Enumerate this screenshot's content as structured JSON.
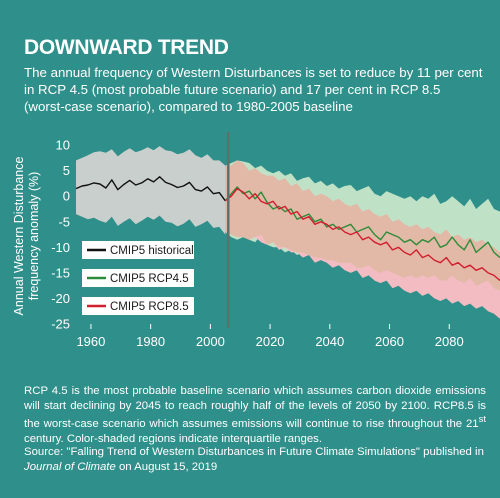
{
  "title": "DOWNWARD TREND",
  "subtitle": "The annual frequency of Western Disturbances is set to reduce by 11 per cent in RCP 4.5 (most probable future scenario) and 17 per cent in RCP 8.5 (worst-case scenario), compared to 1980-2005 baseline",
  "caption": {
    "before_sup": "RCP 4.5 is the most probable baseline scenario which assumes carbon dioxide emissions will start declining by 2045 to reach roughly half of the levels of 2050 by 2100. RCP8.5 is the worst-case scenario which assumes emissions will continue to rise throughout the 21",
    "sup": "st",
    "after_sup": " century. Color-shaded regions indicate interquartile ranges."
  },
  "source": {
    "before_journal": "Source: \"Falling Trend of Western Disturbances in Future Climate Simulations\" published in ",
    "journal": "Journal of Climate",
    "after_journal": " on August 15, 2019"
  },
  "colors": {
    "background": "#2f8f8a",
    "historical_band": "#c9cfcc",
    "rcp45_band": "#bfe2c6",
    "rcp85_band": "#f3bcc3",
    "overlap_band": "#e2b9a6",
    "historical_line": "#111111",
    "rcp45_line": "#2e8b3a",
    "rcp85_line": "#d11f2f",
    "divider": "#5f6f6c"
  },
  "chart_data": {
    "type": "line",
    "ylabel": "Annual Western Disturbance frequency anomaly (%)",
    "xlabel": "",
    "xlim": [
      1955,
      2097
    ],
    "ylim": [
      -25,
      11
    ],
    "xticks": [
      1960,
      1980,
      2000,
      2020,
      2040,
      2060,
      2080
    ],
    "yticks": [
      10,
      5,
      0,
      -5,
      -10,
      -15,
      -20,
      -25
    ],
    "divider_x": 2006,
    "legend_position": "left",
    "series": [
      {
        "name": "CMIP5 historical",
        "x": [
          1955,
          1957,
          1959,
          1961,
          1963,
          1965,
          1967,
          1969,
          1971,
          1973,
          1975,
          1977,
          1979,
          1981,
          1983,
          1985,
          1987,
          1989,
          1991,
          1993,
          1995,
          1997,
          1999,
          2001,
          2003,
          2005
        ],
        "y": [
          1.5,
          2,
          2.2,
          2.6,
          2.4,
          1.6,
          3.2,
          1.3,
          2.3,
          3.1,
          2.2,
          2.6,
          3.4,
          2.8,
          3.8,
          2.7,
          2.3,
          1.7,
          2.0,
          2.7,
          1.3,
          1.0,
          1.8,
          0.5,
          0.7,
          -0.9
        ],
        "q1": [
          -3.5,
          -4.0,
          -4.5,
          -4.2,
          -4.8,
          -5.2,
          -4.0,
          -5.8,
          -5.0,
          -4.3,
          -5.5,
          -4.8,
          -4.0,
          -4.6,
          -3.8,
          -5.0,
          -5.2,
          -5.9,
          -5.4,
          -4.5,
          -6.0,
          -5.5,
          -4.8,
          -6.2,
          -6.0,
          -7.5
        ],
        "q3": [
          7.0,
          7.5,
          8.0,
          8.6,
          8.8,
          8.5,
          9.2,
          7.8,
          8.7,
          9.4,
          8.6,
          9.0,
          9.6,
          9.0,
          9.8,
          9.0,
          8.8,
          8.2,
          8.5,
          9.2,
          8.0,
          7.5,
          8.2,
          7.0,
          7.0,
          6.0
        ]
      },
      {
        "name": "CMIP5 RCP4.5",
        "x": [
          2005,
          2007,
          2009,
          2011,
          2013,
          2015,
          2017,
          2019,
          2021,
          2023,
          2025,
          2027,
          2029,
          2031,
          2033,
          2035,
          2037,
          2039,
          2041,
          2043,
          2045,
          2047,
          2049,
          2051,
          2053,
          2055,
          2057,
          2059,
          2061,
          2063,
          2065,
          2067,
          2069,
          2071,
          2073,
          2075,
          2077,
          2079,
          2081,
          2083,
          2085,
          2087,
          2089,
          2091,
          2093,
          2095,
          2097
        ],
        "y": [
          -0.9,
          0.5,
          1.8,
          0.5,
          1.0,
          -0.5,
          0.8,
          -1.2,
          -2.5,
          -2.0,
          -3.0,
          -2.5,
          -4.5,
          -4.0,
          -3.5,
          -5.0,
          -4.5,
          -6.0,
          -5.5,
          -6.5,
          -6.0,
          -5.5,
          -7.0,
          -6.5,
          -6.0,
          -7.5,
          -8.5,
          -7.0,
          -7.5,
          -8.0,
          -9.0,
          -8.5,
          -9.5,
          -8.5,
          -9.0,
          -8.0,
          -10.0,
          -9.5,
          -8.0,
          -9.5,
          -10.5,
          -8.5,
          -11.0,
          -10.0,
          -9.0,
          -11.0,
          -12.0
        ],
        "q1": [
          -7.0,
          -8.0,
          -8.5,
          -8.0,
          -8.5,
          -9.0,
          -7.5,
          -9.5,
          -10.0,
          -10.0,
          -11.0,
          -10.5,
          -11.5,
          -11.0,
          -11.5,
          -12.0,
          -12.0,
          -12.5,
          -12.5,
          -13.0,
          -13.0,
          -13.0,
          -14.0,
          -14.0,
          -13.5,
          -14.5,
          -15.0,
          -14.5,
          -15.0,
          -15.5,
          -16.0,
          -15.5,
          -16.0,
          -15.5,
          -16.0,
          -15.5,
          -16.5,
          -16.5,
          -15.5,
          -16.5,
          -17.0,
          -16.0,
          -17.5,
          -17.0,
          -16.5,
          -18.0,
          -18.5
        ],
        "q3": [
          6.0,
          6.5,
          7.0,
          6.8,
          6.5,
          5.5,
          6.0,
          5.0,
          4.5,
          5.0,
          4.0,
          4.5,
          3.0,
          3.5,
          3.8,
          2.5,
          3.0,
          2.0,
          2.5,
          1.5,
          2.0,
          2.2,
          1.0,
          1.5,
          2.0,
          0.5,
          0.0,
          1.0,
          0.5,
          0.0,
          -0.5,
          0.0,
          -1.0,
          0.0,
          -0.5,
          0.5,
          -1.5,
          -1.0,
          0.0,
          -1.0,
          -2.0,
          -0.5,
          -2.5,
          -1.5,
          -0.5,
          -2.5,
          -3.0
        ]
      },
      {
        "name": "CMIP5 RCP8.5",
        "x": [
          2005,
          2007,
          2009,
          2011,
          2013,
          2015,
          2017,
          2019,
          2021,
          2023,
          2025,
          2027,
          2029,
          2031,
          2033,
          2035,
          2037,
          2039,
          2041,
          2043,
          2045,
          2047,
          2049,
          2051,
          2053,
          2055,
          2057,
          2059,
          2061,
          2063,
          2065,
          2067,
          2069,
          2071,
          2073,
          2075,
          2077,
          2079,
          2081,
          2083,
          2085,
          2087,
          2089,
          2091,
          2093,
          2095,
          2097
        ],
        "y": [
          -0.9,
          0.0,
          1.5,
          0.8,
          -0.5,
          0.5,
          -1.0,
          -1.5,
          -1.0,
          -2.5,
          -2.0,
          -3.5,
          -3.0,
          -4.5,
          -4.0,
          -5.5,
          -5.0,
          -5.5,
          -6.5,
          -6.0,
          -7.0,
          -7.5,
          -7.0,
          -8.5,
          -8.0,
          -9.0,
          -9.5,
          -9.0,
          -10.5,
          -10.0,
          -11.0,
          -11.5,
          -10.5,
          -12.0,
          -11.5,
          -12.5,
          -13.0,
          -12.0,
          -13.5,
          -13.0,
          -14.0,
          -13.5,
          -14.5,
          -14.0,
          -15.0,
          -15.5,
          -16.5
        ],
        "q1": [
          -7.0,
          -7.5,
          -8.0,
          -8.0,
          -8.5,
          -8.0,
          -9.0,
          -9.5,
          -9.0,
          -10.5,
          -10.0,
          -11.0,
          -11.0,
          -12.0,
          -11.5,
          -13.0,
          -12.5,
          -13.0,
          -14.0,
          -13.5,
          -14.5,
          -15.0,
          -14.5,
          -16.0,
          -15.5,
          -16.5,
          -17.0,
          -16.5,
          -18.0,
          -17.5,
          -18.5,
          -19.0,
          -18.5,
          -19.5,
          -19.0,
          -20.0,
          -20.5,
          -20.0,
          -21.0,
          -20.5,
          -21.5,
          -21.0,
          -22.0,
          -21.5,
          -22.5,
          -23.0,
          -24.0
        ],
        "q3": [
          6.0,
          6.0,
          7.0,
          6.5,
          5.0,
          5.5,
          4.5,
          4.0,
          4.0,
          3.0,
          3.5,
          2.0,
          2.5,
          1.0,
          1.5,
          0.0,
          0.5,
          0.0,
          -1.0,
          -0.5,
          -1.5,
          -2.0,
          -1.5,
          -3.0,
          -2.5,
          -3.5,
          -4.0,
          -3.5,
          -5.0,
          -4.5,
          -5.5,
          -6.0,
          -5.5,
          -6.5,
          -6.0,
          -7.0,
          -7.5,
          -6.5,
          -8.0,
          -7.5,
          -8.5,
          -8.0,
          -9.0,
          -8.5,
          -9.5,
          -10.0,
          -11.0
        ]
      }
    ]
  }
}
